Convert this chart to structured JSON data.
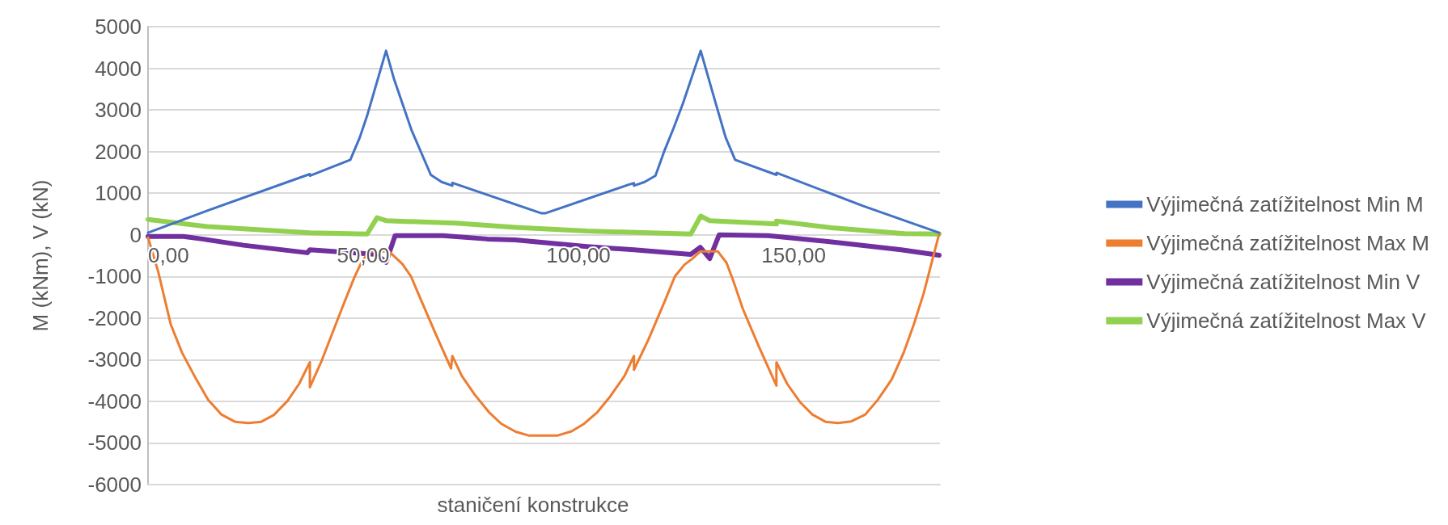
{
  "chart_data": {
    "type": "line",
    "xlabel": "staničení konstrukce",
    "ylabel": "M (kNm), V (kN)",
    "xlim": [
      0,
      184
    ],
    "xticks": [
      {
        "value": 0,
        "label": "0,00"
      },
      {
        "value": 50,
        "label": "50,00"
      },
      {
        "value": 100,
        "label": "100,00"
      },
      {
        "value": 150,
        "label": "150,00"
      }
    ],
    "ylim": [
      -6000,
      5000
    ],
    "yticks": [
      -6000,
      -5000,
      -4000,
      -3000,
      -2000,
      -1000,
      0,
      1000,
      2000,
      3000,
      4000,
      5000
    ],
    "grid": "y",
    "legend": "right",
    "marker": "none",
    "series": [
      {
        "name": "Výjimečná zatížitelnost Min M",
        "color": "#4472c4",
        "x": [
          0,
          13.75,
          37.6,
          37.6,
          47,
          49.2,
          50.9,
          55.3,
          57.1,
          61.2,
          65.7,
          68.2,
          70.7,
          70.7,
          91.3,
          92.4,
          111.8,
          112.9,
          112.9,
          115.4,
          117.9,
          119.9,
          122.1,
          124.3,
          128.4,
          132,
          134.2,
          136.4,
          146,
          146,
          166.2,
          183.8
        ],
        "values": [
          50,
          580,
          1460,
          1420,
          1800,
          2340,
          2860,
          4420,
          3760,
          2520,
          1440,
          1270,
          1180,
          1250,
          520,
          520,
          1210,
          1240,
          1180,
          1270,
          1420,
          2000,
          2560,
          3160,
          4420,
          3120,
          2340,
          1800,
          1440,
          1490,
          690,
          50
        ]
      },
      {
        "name": "Výjimečná zatížitelnost Max M",
        "color": "#ed7d31",
        "x": [
          0,
          2.35,
          5.3,
          7.9,
          11.2,
          14,
          17.1,
          20.2,
          23.3,
          26.3,
          29.2,
          32.4,
          35.1,
          37.6,
          37.6,
          40.2,
          45,
          47.9,
          49.4,
          51.3,
          56,
          59.1,
          61.1,
          63.4,
          66.7,
          70.4,
          70.7,
          72.9,
          75.9,
          79.2,
          82.1,
          85.4,
          88.4,
          95.2,
          98.4,
          101.3,
          104.4,
          107.4,
          110.7,
          112.9,
          112.9,
          116.2,
          120.2,
          122.4,
          124.6,
          126.5,
          128.3,
          132.4,
          134.4,
          136,
          138.2,
          141.9,
          146,
          146,
          148.5,
          151.5,
          154.4,
          157.4,
          160.3,
          163.4,
          166.6,
          169.5,
          172.8,
          175.6,
          177.9,
          180.2,
          183.8
        ],
        "values": [
          -60,
          -880,
          -2160,
          -2830,
          -3470,
          -3970,
          -4320,
          -4490,
          -4520,
          -4490,
          -4330,
          -3990,
          -3580,
          -3060,
          -3660,
          -3060,
          -1780,
          -1030,
          -700,
          -400,
          -400,
          -700,
          -1000,
          -1560,
          -2350,
          -3210,
          -2910,
          -3390,
          -3840,
          -4260,
          -4540,
          -4730,
          -4820,
          -4820,
          -4720,
          -4540,
          -4260,
          -3880,
          -3390,
          -2910,
          -3240,
          -2530,
          -1560,
          -1000,
          -720,
          -570,
          -400,
          -400,
          -670,
          -1110,
          -1780,
          -2680,
          -3620,
          -3060,
          -3580,
          -4020,
          -4320,
          -4490,
          -4520,
          -4480,
          -4320,
          -3970,
          -3470,
          -2820,
          -2160,
          -1410,
          20
        ]
      },
      {
        "name": "Výjimečná zatížitelnost Min V",
        "color": "#7030a0",
        "x": [
          0,
          8.2,
          12.6,
          22.2,
          37,
          37.6,
          53.1,
          55.3,
          57.4,
          68.5,
          78.8,
          85.3,
          102,
          112.9,
          126.1,
          128.3,
          130.5,
          132.7,
          144.1,
          158.8,
          175,
          183.8
        ],
        "values": [
          -40,
          -40,
          -100,
          -250,
          -430,
          -360,
          -470,
          -660,
          -20,
          -20,
          -100,
          -120,
          -280,
          -360,
          -470,
          -300,
          -570,
          0,
          -20,
          -170,
          -360,
          -490
        ]
      },
      {
        "name": "Výjimečná zatížitelnost Max V",
        "color": "#92d050",
        "x": [
          0,
          13.75,
          37.6,
          50.9,
          53.2,
          55.3,
          71.5,
          85.3,
          102,
          126.1,
          128.4,
          130.5,
          146,
          146,
          158.8,
          175.7,
          183.8
        ],
        "values": [
          370,
          200,
          50,
          20,
          410,
          340,
          280,
          180,
          90,
          20,
          450,
          340,
          260,
          330,
          170,
          30,
          20
        ]
      }
    ]
  }
}
